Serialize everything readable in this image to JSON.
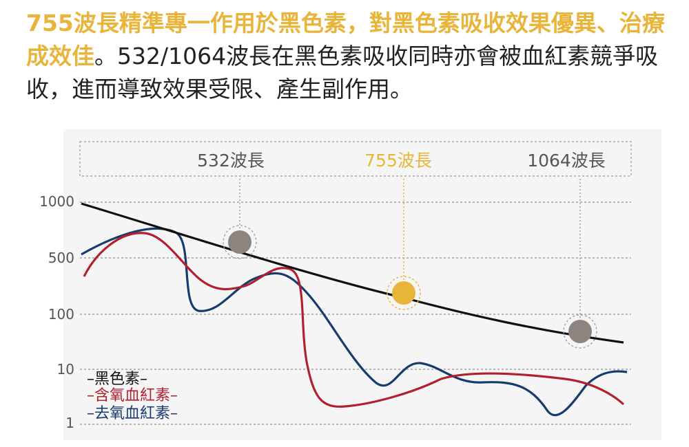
{
  "intro": {
    "highlight": "755波長精準專一作用於黑色素，對黑色素吸收效果優異、治療成效佳",
    "rest": "。532/1064波長在黑色素吸收同時亦會被血紅素競爭吸收，進而導致效果受限、產生副作用。"
  },
  "colors": {
    "melanin": "#111111",
    "oxy": "#b0202e",
    "deoxy": "#163c6e",
    "accent": "#e9b43a",
    "marker_gray": "#8d8480",
    "tick": "#555555"
  },
  "chart_data": {
    "type": "line",
    "title": "",
    "xlabel": "",
    "ylabel": "",
    "y_scale": "log",
    "ylim": [
      1,
      1000
    ],
    "y_ticks": [
      "1000",
      "500",
      "100",
      "10",
      "1"
    ],
    "wavelength_labels": [
      {
        "text": "532波長",
        "highlight": false
      },
      {
        "text": "755波長",
        "highlight": true
      },
      {
        "text": "1064波長",
        "highlight": false
      }
    ],
    "legend": [
      "–黑色素–",
      "–含氧血紅素–",
      "–去氧血紅素–"
    ],
    "series": [
      {
        "name": "黑色素",
        "color": "#111111"
      },
      {
        "name": "含氧血紅素",
        "color": "#b0202e"
      },
      {
        "name": "去氧血紅素",
        "color": "#163c6e"
      }
    ]
  }
}
